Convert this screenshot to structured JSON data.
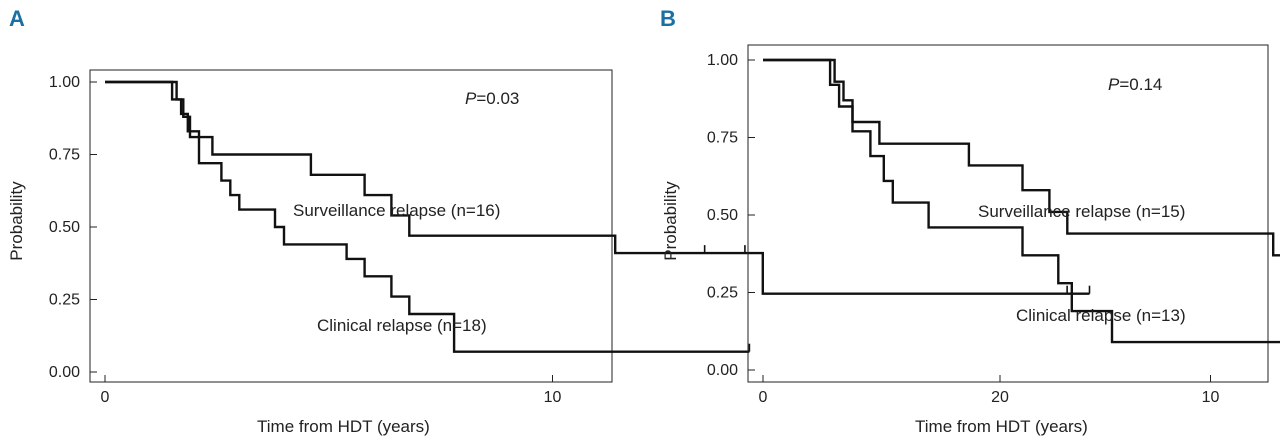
{
  "chart_data": [
    {
      "panel_label": "A",
      "type": "line",
      "xlabel": "Time from HDT (years)",
      "ylabel": "Probability",
      "xlim": [
        0,
        22.5
      ],
      "ylim": [
        0,
        1.0
      ],
      "x_ticks": [
        0,
        10,
        20
      ],
      "x_tick_labels": [
        "0",
        "10",
        "20"
      ],
      "y_ticks": [
        0,
        0.25,
        0.5,
        0.75,
        1.0
      ],
      "y_tick_labels": [
        "0.00",
        "0.25",
        "0.50",
        "0.75",
        "1.00"
      ],
      "p_value": {
        "prefix": "P",
        "value": "=0.03"
      },
      "series": [
        {
          "name": "Surveillance relapse (n=16)",
          "steps": [
            [
              0,
              1.0
            ],
            [
              1.6,
              1.0
            ],
            [
              1.6,
              0.94
            ],
            [
              1.75,
              0.94
            ],
            [
              1.75,
              0.88
            ],
            [
              1.9,
              0.88
            ],
            [
              1.9,
              0.81
            ],
            [
              2.4,
              0.81
            ],
            [
              2.4,
              0.75
            ],
            [
              4.6,
              0.75
            ],
            [
              4.6,
              0.68
            ],
            [
              5.8,
              0.68
            ],
            [
              5.8,
              0.61
            ],
            [
              6.4,
              0.61
            ],
            [
              6.4,
              0.54
            ],
            [
              6.8,
              0.54
            ],
            [
              6.8,
              0.47
            ],
            [
              11.4,
              0.47
            ],
            [
              11.4,
              0.41
            ],
            [
              14.7,
              0.41
            ],
            [
              14.7,
              0.27
            ],
            [
              22,
              0.27
            ]
          ],
          "censored": [
            13.4,
            14.3,
            21.5,
            22
          ]
        },
        {
          "name": "Clinical relapse (n=18)",
          "steps": [
            [
              0,
              1.0
            ],
            [
              1.5,
              1.0
            ],
            [
              1.5,
              0.94
            ],
            [
              1.7,
              0.94
            ],
            [
              1.7,
              0.89
            ],
            [
              1.85,
              0.89
            ],
            [
              1.85,
              0.83
            ],
            [
              2.1,
              0.83
            ],
            [
              2.1,
              0.72
            ],
            [
              2.6,
              0.72
            ],
            [
              2.6,
              0.66
            ],
            [
              2.8,
              0.66
            ],
            [
              2.8,
              0.61
            ],
            [
              3.0,
              0.61
            ],
            [
              3.0,
              0.56
            ],
            [
              3.8,
              0.56
            ],
            [
              3.8,
              0.5
            ],
            [
              4.0,
              0.5
            ],
            [
              4.0,
              0.44
            ],
            [
              5.4,
              0.44
            ],
            [
              5.4,
              0.39
            ],
            [
              5.8,
              0.39
            ],
            [
              5.8,
              0.33
            ],
            [
              6.4,
              0.33
            ],
            [
              6.4,
              0.26
            ],
            [
              6.8,
              0.26
            ],
            [
              6.8,
              0.2
            ],
            [
              7.8,
              0.2
            ],
            [
              7.8,
              0.07
            ],
            [
              14.4,
              0.07
            ]
          ],
          "censored": [
            14.4
          ]
        }
      ]
    },
    {
      "panel_label": "B",
      "type": "line",
      "xlabel": "Time from HDT (years)",
      "ylabel": "Probability",
      "xlim": [
        0,
        22.5
      ],
      "ylim": [
        0,
        1.0
      ],
      "x_ticks": [
        0,
        10,
        20
      ],
      "x_tick_labels": [
        "0",
        "10",
        "20"
      ],
      "y_ticks": [
        0,
        0.25,
        0.5,
        0.75,
        1.0
      ],
      "y_tick_labels": [
        "0.00",
        "0.25",
        "0.50",
        "0.75",
        "1.00"
      ],
      "p_value": {
        "prefix": "P",
        "value": "=0.14"
      },
      "series": [
        {
          "name": "Surveillance relapse (n=15)",
          "steps": [
            [
              0,
              1.0
            ],
            [
              1.6,
              1.0
            ],
            [
              1.6,
              0.93
            ],
            [
              1.8,
              0.93
            ],
            [
              1.8,
              0.87
            ],
            [
              2.0,
              0.87
            ],
            [
              2.0,
              0.8
            ],
            [
              2.6,
              0.8
            ],
            [
              2.6,
              0.73
            ],
            [
              4.6,
              0.73
            ],
            [
              4.6,
              0.66
            ],
            [
              5.8,
              0.66
            ],
            [
              5.8,
              0.58
            ],
            [
              6.4,
              0.58
            ],
            [
              6.4,
              0.51
            ],
            [
              6.8,
              0.51
            ],
            [
              6.8,
              0.44
            ],
            [
              11.4,
              0.44
            ],
            [
              11.4,
              0.37
            ],
            [
              22,
              0.37
            ]
          ],
          "censored": [
            12.4,
            13.4,
            14.3,
            21.6,
            22
          ]
        },
        {
          "name": "Clinical relapse (n=13)",
          "steps": [
            [
              0,
              1.0
            ],
            [
              1.5,
              1.0
            ],
            [
              1.5,
              0.92
            ],
            [
              1.7,
              0.92
            ],
            [
              1.7,
              0.85
            ],
            [
              2.0,
              0.85
            ],
            [
              2.0,
              0.77
            ],
            [
              2.4,
              0.77
            ],
            [
              2.4,
              0.69
            ],
            [
              2.7,
              0.69
            ],
            [
              2.7,
              0.61
            ],
            [
              2.9,
              0.61
            ],
            [
              2.9,
              0.54
            ],
            [
              3.7,
              0.54
            ],
            [
              3.7,
              0.46
            ],
            [
              5.8,
              0.46
            ],
            [
              5.8,
              0.37
            ],
            [
              6.6,
              0.37
            ],
            [
              6.6,
              0.28
            ],
            [
              6.9,
              0.28
            ],
            [
              6.9,
              0.19
            ],
            [
              7.8,
              0.19
            ],
            [
              7.8,
              0.09
            ],
            [
              14.4,
              0.09
            ]
          ],
          "censored": [
            5.8,
            14.4
          ]
        }
      ]
    }
  ]
}
